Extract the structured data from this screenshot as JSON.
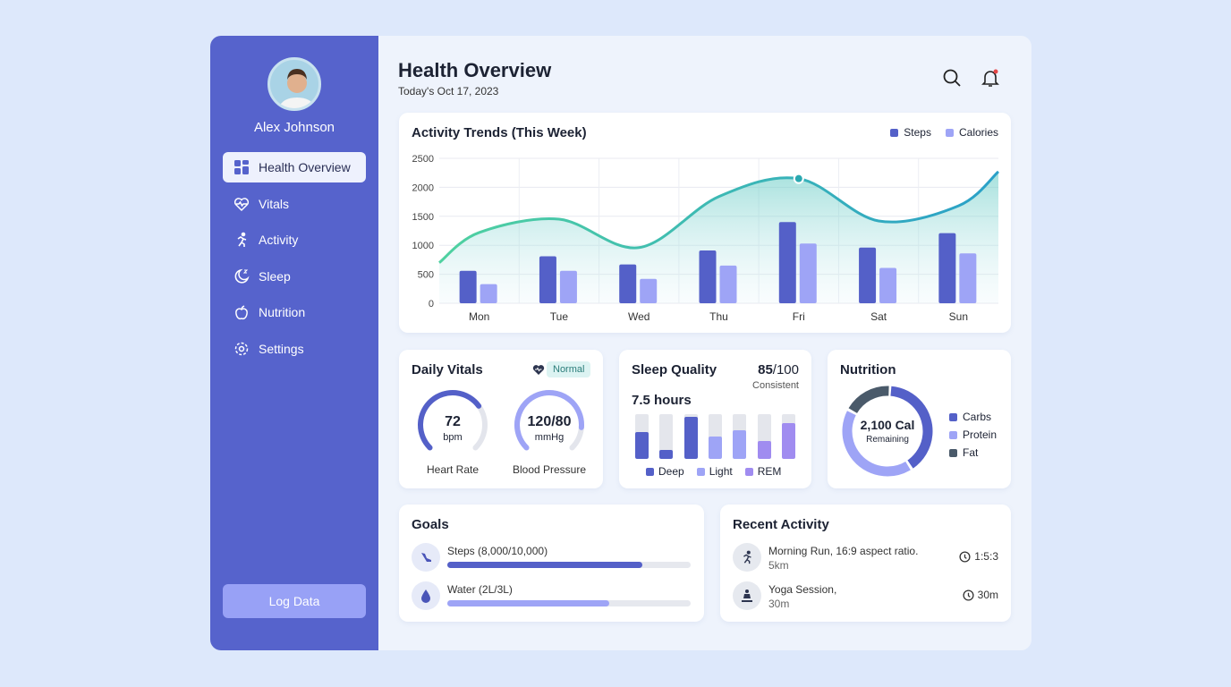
{
  "user": {
    "name": "Alex Johnson"
  },
  "sidebar": {
    "items": [
      {
        "label": "Health Overview",
        "icon": "grid-icon",
        "active": true
      },
      {
        "label": "Vitals",
        "icon": "heart-pulse-icon"
      },
      {
        "label": "Activity",
        "icon": "running-icon"
      },
      {
        "label": "Sleep",
        "icon": "moon-icon"
      },
      {
        "label": "Nutrition",
        "icon": "apple-icon"
      },
      {
        "label": "Settings",
        "icon": "gear-icon"
      }
    ],
    "log_button": "Log Data"
  },
  "header": {
    "title": "Health Overview",
    "date": "Today's Oct 17, 2023"
  },
  "colors": {
    "sidebar": "#5663cc",
    "steps": "#5460c8",
    "calories": "#9ea4f6",
    "trend_start": "#4fd1a0",
    "trend_end": "#2aa0c8",
    "fat": "#4a5a6a",
    "rem": "#a08cf0"
  },
  "chart_data": {
    "type": "bar",
    "title": "Activity Trends (This Week)",
    "categories": [
      "Mon",
      "Tue",
      "Wed",
      "Thu",
      "Fri",
      "Sat",
      "Sun"
    ],
    "ylim": [
      0,
      2500
    ],
    "yticks": [
      "0",
      "500",
      "1000",
      "1500",
      "2000",
      "2500"
    ],
    "grid": true,
    "legend": "top-right",
    "series": [
      {
        "name": "Steps",
        "values": [
          560,
          810,
          670,
          910,
          1400,
          960,
          1210
        ]
      },
      {
        "name": "Calories",
        "values": [
          330,
          560,
          420,
          650,
          1030,
          610,
          860
        ]
      }
    ],
    "trend_line": {
      "type": "area",
      "values": [
        1220,
        1450,
        960,
        1840,
        2150,
        1420,
        1680
      ],
      "start": 700,
      "end": 2270,
      "highlight": "Fri"
    }
  },
  "vitals": {
    "title": "Daily Vitals",
    "status": "Normal",
    "heart": {
      "value": "72",
      "unit": "bpm",
      "label": "Heart Rate",
      "fill": 0.7
    },
    "bp": {
      "value": "120/80",
      "unit": "mmHg",
      "label": "Blood Pressure",
      "fill": 0.85
    }
  },
  "sleep": {
    "title": "Sleep Quality",
    "score": "85",
    "score_max": "/100",
    "score_label": "Consistent",
    "hours": "7.5 hours",
    "bars": [
      {
        "type": "Deep",
        "fill": 0.6
      },
      {
        "type": "Deep",
        "fill": 0.2
      },
      {
        "type": "Deep",
        "fill": 0.95
      },
      {
        "type": "Light",
        "fill": 0.5
      },
      {
        "type": "Light",
        "fill": 0.65
      },
      {
        "type": "REM",
        "fill": 0.4
      },
      {
        "type": "REM",
        "fill": 0.8
      }
    ],
    "legend": [
      "Deep",
      "Light",
      "REM"
    ]
  },
  "nutrition": {
    "title": "Nutrition",
    "calories": "2,100 Cal",
    "sub": "Remaining",
    "legend": [
      {
        "name": "Carbs",
        "pct": 40
      },
      {
        "name": "Protein",
        "pct": 42
      },
      {
        "name": "Fat",
        "pct": 18
      }
    ]
  },
  "goals": {
    "title": "Goals",
    "items": [
      {
        "label": "Steps (8,000/10,000)",
        "progress": 0.8,
        "icon": "shoe-icon"
      },
      {
        "label": "Water (2L/3L)",
        "progress": 0.667,
        "icon": "water-drop-icon"
      }
    ]
  },
  "recent": {
    "title": "Recent Activity",
    "items": [
      {
        "title": "Morning Run, 16:9 aspect ratio.",
        "sub": "5km",
        "time": "1:5:3",
        "icon": "running-icon"
      },
      {
        "title": "Yoga Session,",
        "sub": "30m",
        "time": "30m",
        "icon": "yoga-icon"
      }
    ]
  }
}
